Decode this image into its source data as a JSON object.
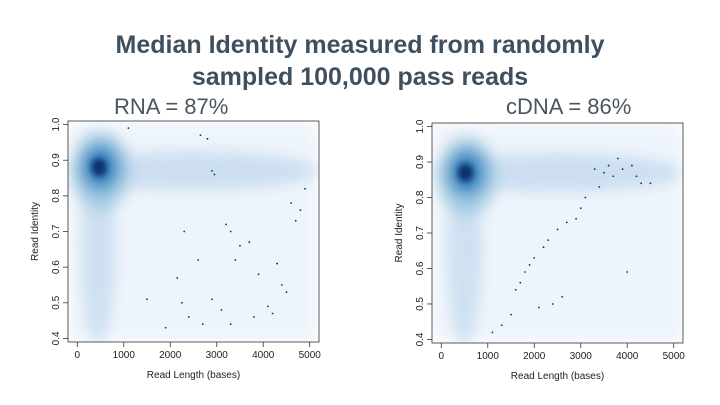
{
  "slide": {
    "title_line1": "Median Identity measured from randomly",
    "title_line2": "sampled 100,000 pass reads"
  },
  "chart_data": [
    {
      "type": "heatmap",
      "title": "RNA = 87%",
      "xlabel": "Read Length (bases)",
      "ylabel": "Read Identity",
      "xlim": [
        -200,
        5200
      ],
      "ylim": [
        0.39,
        1.01
      ],
      "xticks": [
        0,
        1000,
        2000,
        3000,
        4000,
        5000
      ],
      "yticks": [
        0.4,
        0.5,
        0.6,
        0.7,
        0.8,
        0.9,
        1.0
      ],
      "density_color": "#08306b",
      "peak": {
        "x": 500,
        "y": 0.88
      },
      "band_y": 0.87,
      "outliers": [
        [
          2900,
          0.87
        ],
        [
          2950,
          0.86
        ],
        [
          2650,
          0.97
        ],
        [
          2800,
          0.96
        ],
        [
          1100,
          0.99
        ],
        [
          3200,
          0.72
        ],
        [
          3300,
          0.7
        ],
        [
          3500,
          0.66
        ],
        [
          3700,
          0.67
        ],
        [
          3400,
          0.62
        ],
        [
          2300,
          0.7
        ],
        [
          2600,
          0.62
        ],
        [
          4400,
          0.55
        ],
        [
          4500,
          0.53
        ],
        [
          4100,
          0.49
        ],
        [
          2400,
          0.46
        ],
        [
          2700,
          0.44
        ],
        [
          2900,
          0.51
        ],
        [
          3100,
          0.48
        ],
        [
          3300,
          0.44
        ],
        [
          3800,
          0.46
        ],
        [
          4200,
          0.47
        ],
        [
          4700,
          0.73
        ],
        [
          4800,
          0.76
        ],
        [
          4600,
          0.78
        ],
        [
          4900,
          0.82
        ],
        [
          2250,
          0.5
        ],
        [
          2150,
          0.57
        ],
        [
          1500,
          0.51
        ],
        [
          1900,
          0.43
        ],
        [
          3900,
          0.58
        ],
        [
          4300,
          0.61
        ]
      ]
    },
    {
      "type": "heatmap",
      "title": "cDNA = 86%",
      "xlabel": "Read Length (bases)",
      "ylabel": "Read Identity",
      "xlim": [
        -200,
        5200
      ],
      "ylim": [
        0.39,
        1.01
      ],
      "xticks": [
        0,
        1000,
        2000,
        3000,
        4000,
        5000
      ],
      "yticks": [
        0.4,
        0.5,
        0.6,
        0.7,
        0.8,
        0.9,
        1.0
      ],
      "density_color": "#08306b",
      "peak": {
        "x": 550,
        "y": 0.87
      },
      "band_y": 0.87,
      "outliers": [
        [
          3300,
          0.88
        ],
        [
          3500,
          0.87
        ],
        [
          3600,
          0.89
        ],
        [
          3700,
          0.86
        ],
        [
          3900,
          0.88
        ],
        [
          4100,
          0.89
        ],
        [
          4200,
          0.86
        ],
        [
          4300,
          0.84
        ],
        [
          3400,
          0.83
        ],
        [
          3100,
          0.8
        ],
        [
          3000,
          0.77
        ],
        [
          2900,
          0.74
        ],
        [
          2700,
          0.73
        ],
        [
          2500,
          0.71
        ],
        [
          2300,
          0.68
        ],
        [
          2200,
          0.66
        ],
        [
          2000,
          0.63
        ],
        [
          1900,
          0.61
        ],
        [
          1800,
          0.59
        ],
        [
          1700,
          0.56
        ],
        [
          1600,
          0.54
        ],
        [
          2100,
          0.49
        ],
        [
          2400,
          0.5
        ],
        [
          2600,
          0.52
        ],
        [
          1500,
          0.47
        ],
        [
          1300,
          0.44
        ],
        [
          1100,
          0.42
        ],
        [
          4000,
          0.59
        ],
        [
          4500,
          0.84
        ],
        [
          3800,
          0.91
        ]
      ]
    }
  ]
}
